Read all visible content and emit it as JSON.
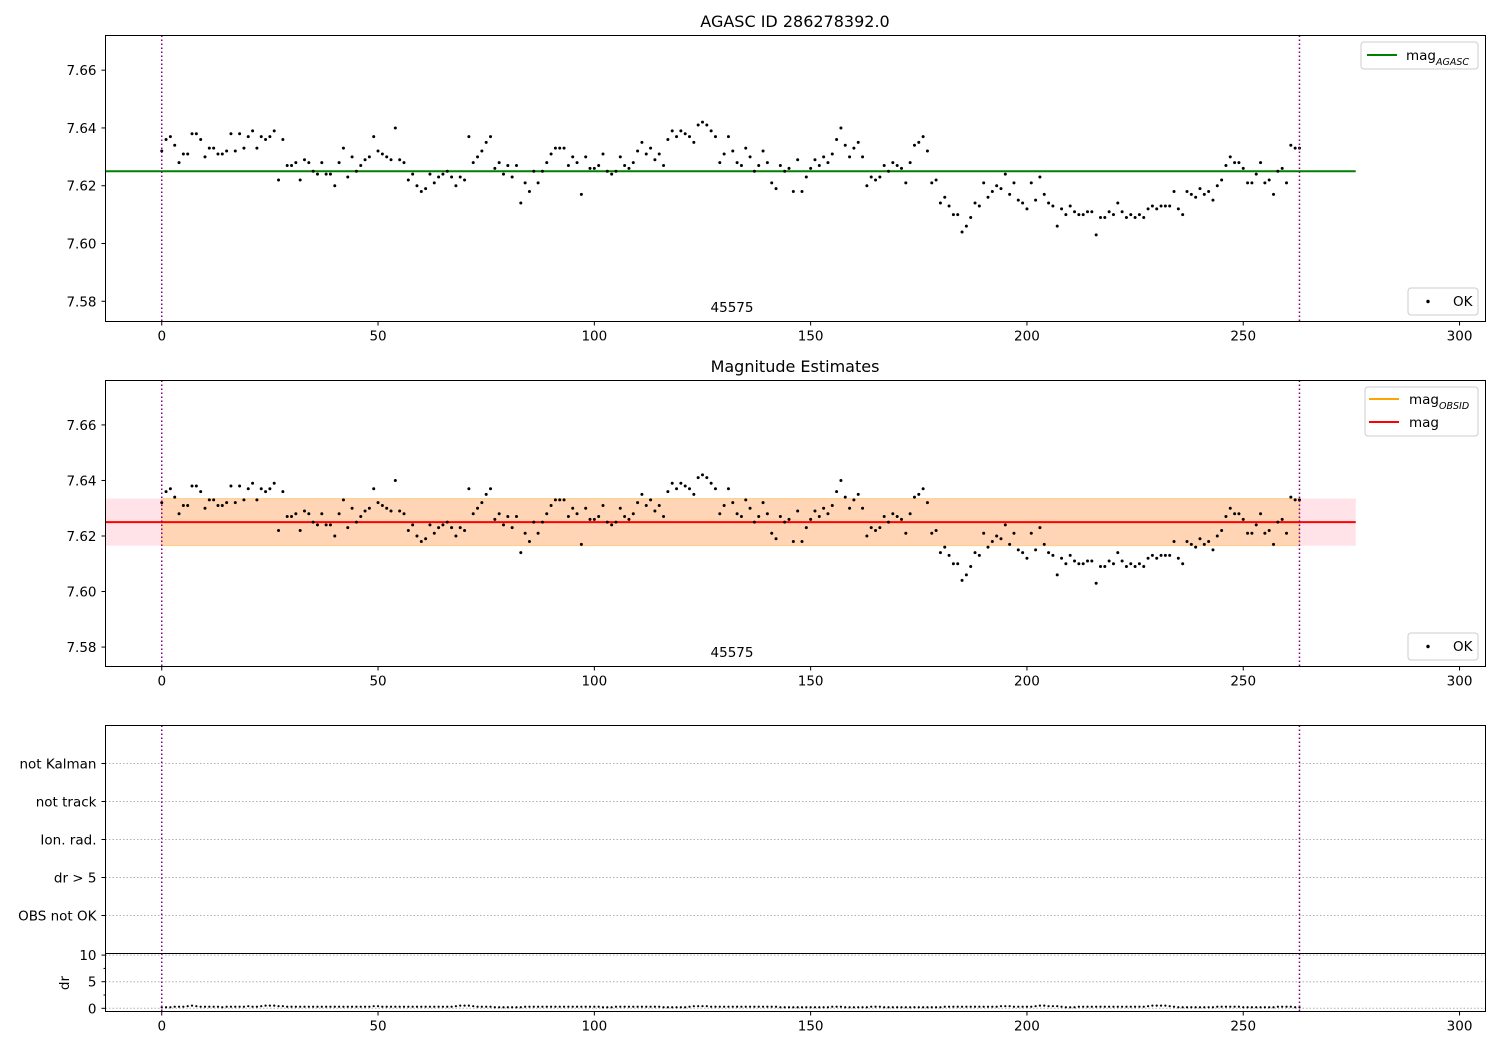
{
  "chart_data": [
    {
      "type": "scatter",
      "title": "AGASC ID 286278392.0",
      "xlim": [
        -13,
        306
      ],
      "ylim": [
        7.573,
        7.672
      ],
      "xticks": [
        0,
        50,
        100,
        150,
        200,
        250,
        300
      ],
      "yticks": [
        7.58,
        7.6,
        7.62,
        7.64,
        7.66
      ],
      "grid": false,
      "annotation": "45575",
      "legend_upper": {
        "position": "upper-right",
        "entries": [
          {
            "label": "mag",
            "subscript": "AGASC",
            "color": "#008000",
            "kind": "line"
          }
        ]
      },
      "legend_lower": {
        "position": "lower-right",
        "entries": [
          {
            "label": "OK",
            "color": "#000000",
            "kind": "marker"
          }
        ]
      },
      "hlines": [
        {
          "y": 7.625,
          "x": [
            -13,
            276
          ],
          "color": "#008000"
        }
      ],
      "vlines": [
        {
          "x": 0,
          "color": "#800080",
          "style": "dotted"
        },
        {
          "x": 263,
          "color": "#800080",
          "style": "dotted"
        }
      ],
      "series": [
        {
          "name": "OK",
          "color": "#000000"
        }
      ]
    },
    {
      "type": "scatter",
      "title": "Magnitude Estimates",
      "xlim": [
        -13,
        306
      ],
      "ylim": [
        7.573,
        7.676
      ],
      "xticks": [
        0,
        50,
        100,
        150,
        200,
        250,
        300
      ],
      "yticks": [
        7.58,
        7.6,
        7.62,
        7.64,
        7.66
      ],
      "grid": false,
      "annotation": "45575",
      "legend_upper": {
        "position": "upper-right",
        "entries": [
          {
            "label": "mag",
            "subscript": "OBSID",
            "color": "#ffa500",
            "kind": "line"
          },
          {
            "label": "mag",
            "subscript": "",
            "color": "#ff0000",
            "kind": "line"
          }
        ]
      },
      "legend_lower": {
        "position": "lower-right",
        "entries": [
          {
            "label": "OK",
            "color": "#000000",
            "kind": "marker"
          }
        ]
      },
      "bands": [
        {
          "y": [
            7.6165,
            7.6335
          ],
          "x": [
            -13,
            276
          ],
          "color": "#ffc0cb",
          "opacity": 0.45
        },
        {
          "y": [
            7.6165,
            7.6335
          ],
          "x": [
            0,
            263
          ],
          "color": "#ffa500",
          "opacity": 0.22
        }
      ],
      "hlines": [
        {
          "y": 7.625,
          "x": [
            -13,
            276
          ],
          "color": "#ff0000"
        }
      ],
      "vlines": [
        {
          "x": 0,
          "color": "#800080",
          "style": "dotted"
        },
        {
          "x": 263,
          "color": "#800080",
          "style": "dotted"
        }
      ],
      "series": [
        {
          "name": "OK",
          "color": "#000000"
        }
      ]
    },
    {
      "type": "scatter",
      "title": "",
      "xlim": [
        -13,
        306
      ],
      "categories": [
        "OBS not OK",
        "dr > 5",
        "Ion. rad.",
        "not track",
        "not Kalman"
      ],
      "grid": true,
      "vlines": [
        {
          "x": 0,
          "color": "#800080",
          "style": "dotted"
        },
        {
          "x": 263,
          "color": "#800080",
          "style": "dotted"
        }
      ]
    },
    {
      "type": "scatter",
      "title": "",
      "xlim": [
        -13,
        306
      ],
      "ylim": [
        -0.6,
        10.3
      ],
      "xticks": [
        0,
        50,
        100,
        150,
        200,
        250,
        300
      ],
      "yticks": [
        0,
        5,
        10
      ],
      "ylabel": "dr",
      "grid": true,
      "vlines": [
        {
          "x": 0,
          "color": "#800080",
          "style": "dotted"
        },
        {
          "x": 263,
          "color": "#800080",
          "style": "dotted"
        }
      ],
      "series": [
        {
          "name": "dr",
          "color": "#000000"
        }
      ]
    }
  ],
  "magnitude_samples": [
    [
      0,
      7.632
    ],
    [
      1,
      7.636
    ],
    [
      2,
      7.637
    ],
    [
      3,
      7.634
    ],
    [
      4,
      7.628
    ],
    [
      5,
      7.631
    ],
    [
      6,
      7.631
    ],
    [
      7,
      7.638
    ],
    [
      8,
      7.638
    ],
    [
      9,
      7.636
    ],
    [
      10,
      7.63
    ],
    [
      11,
      7.633
    ],
    [
      12,
      7.633
    ],
    [
      13,
      7.631
    ],
    [
      14,
      7.631
    ],
    [
      15,
      7.632
    ],
    [
      16,
      7.638
    ],
    [
      17,
      7.632
    ],
    [
      18,
      7.638
    ],
    [
      19,
      7.633
    ],
    [
      20,
      7.637
    ],
    [
      21,
      7.639
    ],
    [
      22,
      7.633
    ],
    [
      23,
      7.637
    ],
    [
      24,
      7.636
    ],
    [
      25,
      7.637
    ],
    [
      26,
      7.639
    ],
    [
      27,
      7.622
    ],
    [
      28,
      7.636
    ],
    [
      29,
      7.627
    ],
    [
      30,
      7.627
    ],
    [
      31,
      7.628
    ],
    [
      32,
      7.622
    ],
    [
      33,
      7.629
    ],
    [
      34,
      7.628
    ],
    [
      35,
      7.625
    ],
    [
      36,
      7.624
    ],
    [
      37,
      7.628
    ],
    [
      38,
      7.624
    ],
    [
      39,
      7.624
    ],
    [
      40,
      7.62
    ],
    [
      41,
      7.628
    ],
    [
      42,
      7.633
    ],
    [
      43,
      7.623
    ],
    [
      44,
      7.63
    ],
    [
      45,
      7.625
    ],
    [
      46,
      7.627
    ],
    [
      47,
      7.629
    ],
    [
      48,
      7.63
    ],
    [
      49,
      7.637
    ],
    [
      50,
      7.632
    ],
    [
      51,
      7.631
    ],
    [
      52,
      7.63
    ],
    [
      53,
      7.629
    ],
    [
      54,
      7.64
    ],
    [
      55,
      7.629
    ],
    [
      56,
      7.628
    ],
    [
      57,
      7.622
    ],
    [
      58,
      7.624
    ],
    [
      59,
      7.62
    ],
    [
      60,
      7.618
    ],
    [
      61,
      7.619
    ],
    [
      62,
      7.624
    ],
    [
      63,
      7.621
    ],
    [
      64,
      7.623
    ],
    [
      65,
      7.624
    ],
    [
      66,
      7.625
    ],
    [
      67,
      7.623
    ],
    [
      68,
      7.62
    ],
    [
      69,
      7.623
    ],
    [
      70,
      7.622
    ],
    [
      71,
      7.637
    ],
    [
      72,
      7.628
    ],
    [
      73,
      7.63
    ],
    [
      74,
      7.632
    ],
    [
      75,
      7.635
    ],
    [
      76,
      7.637
    ],
    [
      77,
      7.626
    ],
    [
      78,
      7.628
    ],
    [
      79,
      7.624
    ],
    [
      80,
      7.627
    ],
    [
      81,
      7.623
    ],
    [
      82,
      7.627
    ],
    [
      83,
      7.614
    ],
    [
      84,
      7.621
    ],
    [
      85,
      7.618
    ],
    [
      86,
      7.625
    ],
    [
      87,
      7.621
    ],
    [
      88,
      7.625
    ],
    [
      89,
      7.628
    ],
    [
      90,
      7.631
    ],
    [
      91,
      7.633
    ],
    [
      92,
      7.633
    ],
    [
      93,
      7.633
    ],
    [
      94,
      7.627
    ],
    [
      95,
      7.63
    ],
    [
      96,
      7.628
    ],
    [
      97,
      7.617
    ],
    [
      98,
      7.63
    ],
    [
      99,
      7.626
    ],
    [
      100,
      7.626
    ],
    [
      101,
      7.627
    ],
    [
      102,
      7.631
    ],
    [
      103,
      7.625
    ],
    [
      104,
      7.624
    ],
    [
      105,
      7.625
    ],
    [
      106,
      7.63
    ],
    [
      107,
      7.627
    ],
    [
      108,
      7.626
    ],
    [
      109,
      7.628
    ],
    [
      110,
      7.632
    ],
    [
      111,
      7.635
    ],
    [
      112,
      7.631
    ],
    [
      113,
      7.633
    ],
    [
      114,
      7.629
    ],
    [
      115,
      7.631
    ],
    [
      116,
      7.627
    ],
    [
      117,
      7.636
    ],
    [
      118,
      7.639
    ],
    [
      119,
      7.637
    ],
    [
      120,
      7.639
    ],
    [
      121,
      7.638
    ],
    [
      122,
      7.637
    ],
    [
      123,
      7.635
    ],
    [
      124,
      7.641
    ],
    [
      125,
      7.642
    ],
    [
      126,
      7.641
    ],
    [
      127,
      7.639
    ],
    [
      128,
      7.637
    ],
    [
      129,
      7.628
    ],
    [
      130,
      7.631
    ],
    [
      131,
      7.637
    ],
    [
      132,
      7.632
    ],
    [
      133,
      7.628
    ],
    [
      134,
      7.627
    ],
    [
      135,
      7.633
    ],
    [
      136,
      7.63
    ],
    [
      137,
      7.625
    ],
    [
      138,
      7.627
    ],
    [
      139,
      7.632
    ],
    [
      140,
      7.628
    ],
    [
      141,
      7.621
    ],
    [
      142,
      7.619
    ],
    [
      143,
      7.627
    ],
    [
      144,
      7.625
    ],
    [
      145,
      7.626
    ],
    [
      146,
      7.618
    ],
    [
      147,
      7.629
    ],
    [
      148,
      7.618
    ],
    [
      149,
      7.623
    ],
    [
      150,
      7.626
    ],
    [
      151,
      7.629
    ],
    [
      152,
      7.627
    ],
    [
      153,
      7.63
    ],
    [
      154,
      7.628
    ],
    [
      155,
      7.631
    ],
    [
      156,
      7.636
    ],
    [
      157,
      7.64
    ],
    [
      158,
      7.634
    ],
    [
      159,
      7.63
    ],
    [
      160,
      7.633
    ],
    [
      161,
      7.635
    ],
    [
      162,
      7.63
    ],
    [
      163,
      7.62
    ],
    [
      164,
      7.623
    ],
    [
      165,
      7.622
    ],
    [
      166,
      7.623
    ],
    [
      167,
      7.627
    ],
    [
      168,
      7.625
    ],
    [
      169,
      7.628
    ],
    [
      170,
      7.627
    ],
    [
      171,
      7.626
    ],
    [
      172,
      7.621
    ],
    [
      173,
      7.628
    ],
    [
      174,
      7.634
    ],
    [
      175,
      7.635
    ],
    [
      176,
      7.637
    ],
    [
      177,
      7.632
    ],
    [
      178,
      7.621
    ],
    [
      179,
      7.622
    ],
    [
      180,
      7.614
    ],
    [
      181,
      7.616
    ],
    [
      182,
      7.613
    ],
    [
      183,
      7.61
    ],
    [
      184,
      7.61
    ],
    [
      185,
      7.604
    ],
    [
      186,
      7.606
    ],
    [
      187,
      7.609
    ],
    [
      188,
      7.614
    ],
    [
      189,
      7.613
    ],
    [
      190,
      7.621
    ],
    [
      191,
      7.616
    ],
    [
      192,
      7.618
    ],
    [
      193,
      7.62
    ],
    [
      194,
      7.619
    ],
    [
      195,
      7.624
    ],
    [
      196,
      7.617
    ],
    [
      197,
      7.621
    ],
    [
      198,
      7.615
    ],
    [
      199,
      7.614
    ],
    [
      200,
      7.612
    ],
    [
      201,
      7.621
    ],
    [
      202,
      7.615
    ],
    [
      203,
      7.623
    ],
    [
      204,
      7.617
    ],
    [
      205,
      7.614
    ],
    [
      206,
      7.613
    ],
    [
      207,
      7.606
    ],
    [
      208,
      7.612
    ],
    [
      209,
      7.61
    ],
    [
      210,
      7.613
    ],
    [
      211,
      7.611
    ],
    [
      212,
      7.61
    ],
    [
      213,
      7.61
    ],
    [
      214,
      7.611
    ],
    [
      215,
      7.611
    ],
    [
      216,
      7.603
    ],
    [
      217,
      7.609
    ],
    [
      218,
      7.609
    ],
    [
      219,
      7.611
    ],
    [
      220,
      7.61
    ],
    [
      221,
      7.614
    ],
    [
      222,
      7.611
    ],
    [
      223,
      7.609
    ],
    [
      224,
      7.61
    ],
    [
      225,
      7.609
    ],
    [
      226,
      7.61
    ],
    [
      227,
      7.609
    ],
    [
      228,
      7.612
    ],
    [
      229,
      7.613
    ],
    [
      230,
      7.612
    ],
    [
      231,
      7.613
    ],
    [
      232,
      7.613
    ],
    [
      233,
      7.613
    ],
    [
      234,
      7.618
    ],
    [
      235,
      7.612
    ],
    [
      236,
      7.61
    ],
    [
      237,
      7.618
    ],
    [
      238,
      7.617
    ],
    [
      239,
      7.616
    ],
    [
      240,
      7.619
    ],
    [
      241,
      7.617
    ],
    [
      242,
      7.618
    ],
    [
      243,
      7.615
    ],
    [
      244,
      7.62
    ],
    [
      245,
      7.622
    ],
    [
      246,
      7.627
    ],
    [
      247,
      7.63
    ],
    [
      248,
      7.628
    ],
    [
      249,
      7.628
    ],
    [
      250,
      7.626
    ],
    [
      251,
      7.621
    ],
    [
      252,
      7.621
    ],
    [
      253,
      7.624
    ],
    [
      254,
      7.628
    ],
    [
      255,
      7.621
    ],
    [
      256,
      7.622
    ],
    [
      257,
      7.617
    ],
    [
      258,
      7.625
    ],
    [
      259,
      7.626
    ],
    [
      260,
      7.621
    ],
    [
      261,
      7.634
    ],
    [
      262,
      7.633
    ],
    [
      263,
      7.633
    ]
  ],
  "dr_samples": [
    0.2,
    0.2,
    0.2,
    0.3,
    0.3,
    0.3,
    0.4,
    0.5,
    0.4,
    0.3,
    0.3,
    0.3,
    0.3,
    0.3,
    0.2,
    0.3,
    0.3,
    0.3,
    0.3,
    0.3,
    0.4,
    0.3,
    0.3,
    0.4,
    0.5,
    0.5,
    0.5,
    0.4,
    0.4,
    0.3,
    0.3,
    0.3,
    0.3,
    0.3,
    0.3,
    0.3,
    0.3,
    0.3,
    0.3,
    0.3,
    0.3,
    0.3,
    0.3,
    0.3,
    0.3,
    0.3,
    0.3,
    0.3,
    0.3,
    0.4,
    0.4,
    0.3,
    0.3,
    0.3,
    0.3,
    0.3,
    0.3,
    0.3,
    0.3,
    0.3,
    0.3,
    0.3,
    0.3,
    0.3,
    0.3,
    0.3,
    0.3,
    0.3,
    0.4,
    0.5,
    0.5,
    0.5,
    0.4,
    0.3,
    0.3,
    0.3,
    0.3,
    0.2,
    0.2,
    0.2,
    0.2,
    0.2,
    0.2,
    0.2,
    0.3,
    0.3,
    0.3,
    0.3,
    0.3,
    0.3,
    0.3,
    0.3,
    0.3,
    0.3,
    0.3,
    0.3,
    0.3,
    0.3,
    0.3,
    0.3,
    0.3,
    0.3,
    0.2,
    0.2,
    0.2,
    0.3,
    0.3,
    0.3,
    0.3,
    0.3,
    0.3,
    0.3,
    0.3,
    0.3,
    0.3,
    0.3,
    0.2,
    0.2,
    0.2,
    0.2,
    0.2,
    0.2,
    0.3,
    0.4,
    0.4,
    0.4,
    0.4,
    0.3,
    0.3,
    0.3,
    0.3,
    0.3,
    0.3,
    0.3,
    0.3,
    0.3,
    0.3,
    0.3,
    0.3,
    0.3,
    0.3,
    0.3,
    0.3,
    0.2,
    0.2,
    0.2,
    0.2,
    0.2,
    0.2,
    0.2,
    0.2,
    0.2,
    0.2,
    0.2,
    0.2,
    0.3,
    0.3,
    0.3,
    0.2,
    0.2,
    0.2,
    0.2,
    0.2,
    0.2,
    0.3,
    0.3,
    0.3,
    0.2,
    0.2,
    0.2,
    0.2,
    0.2,
    0.2,
    0.2,
    0.2,
    0.2,
    0.2,
    0.2,
    0.2,
    0.2,
    0.2,
    0.3,
    0.3,
    0.3,
    0.3,
    0.3,
    0.3,
    0.3,
    0.3,
    0.3,
    0.3,
    0.3,
    0.3,
    0.3,
    0.4,
    0.4,
    0.4,
    0.3,
    0.3,
    0.3,
    0.3,
    0.3,
    0.4,
    0.5,
    0.5,
    0.4,
    0.4,
    0.4,
    0.3,
    0.2,
    0.2,
    0.2,
    0.3,
    0.3,
    0.3,
    0.3,
    0.3,
    0.3,
    0.3,
    0.3,
    0.3,
    0.3,
    0.3,
    0.3,
    0.3,
    0.3,
    0.3,
    0.3,
    0.4,
    0.5,
    0.5,
    0.5,
    0.5,
    0.4,
    0.3,
    0.2,
    0.2,
    0.2,
    0.2,
    0.2,
    0.2,
    0.2,
    0.2,
    0.2,
    0.3,
    0.3,
    0.3,
    0.3,
    0.3,
    0.3,
    0.2,
    0.2,
    0.2,
    0.2,
    0.2,
    0.2,
    0.2,
    0.2,
    0.3,
    0.3,
    0.3,
    0.3,
    0.2,
    0.2
  ]
}
